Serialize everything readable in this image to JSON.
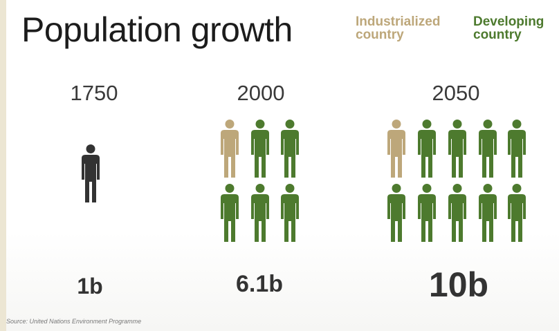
{
  "title": "Population growth",
  "legend": {
    "industrialized": "Industrialized\ncountry",
    "developing": "Developing\ncountry"
  },
  "colors": {
    "industrialized": "#bda77a",
    "developing": "#4d7a2e",
    "world": "#333333"
  },
  "source": "Source: United Nations Environment Programme",
  "chart_data": {
    "type": "pictogram",
    "title": "Population growth",
    "categories": [
      "1750",
      "2000",
      "2050"
    ],
    "values": [
      1,
      6.1,
      10
    ],
    "value_labels": [
      "1b",
      "6.1b",
      "10b"
    ],
    "icons": [
      {
        "year": "1750",
        "industrialized": 0,
        "developing": 0,
        "world": 1
      },
      {
        "year": "2000",
        "industrialized": 1,
        "developing": 5,
        "world": 0
      },
      {
        "year": "2050",
        "industrialized": 1,
        "developing": 9,
        "world": 0
      }
    ],
    "series": [
      {
        "name": "Industrialized country",
        "values": [
          0,
          1,
          1
        ]
      },
      {
        "name": "Developing country",
        "values": [
          0,
          5,
          9
        ]
      }
    ],
    "legend_position": "top-right"
  }
}
